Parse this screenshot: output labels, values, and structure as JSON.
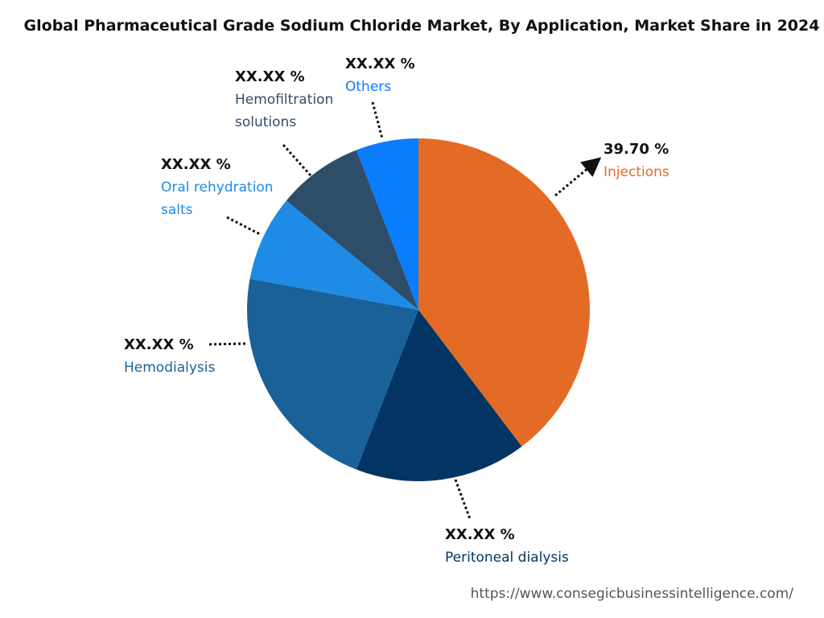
{
  "chart_data": {
    "type": "pie",
    "title": "Global Pharmaceutical Grade Sodium Chloride Market, By Application, Market Share in 2024",
    "categories": [
      "Injections",
      "Peritoneal dialysis",
      "Hemodialysis",
      "Oral rehydration salts",
      "Hemofiltration solutions",
      "Others"
    ],
    "values": [
      39.7,
      16.2,
      22.0,
      8.1,
      8.1,
      5.9
    ],
    "value_labels": [
      "39.70 %",
      "XX.XX %",
      "XX.XX %",
      "XX.XX %",
      "XX.XX %",
      "XX.XX %"
    ],
    "colors": [
      "#e46b26",
      "#033564",
      "#1b6199",
      "#1e8be6",
      "#2e4d69",
      "#0a7cfe"
    ],
    "source": "https://www.consegicbusinessintelligence.com/"
  }
}
